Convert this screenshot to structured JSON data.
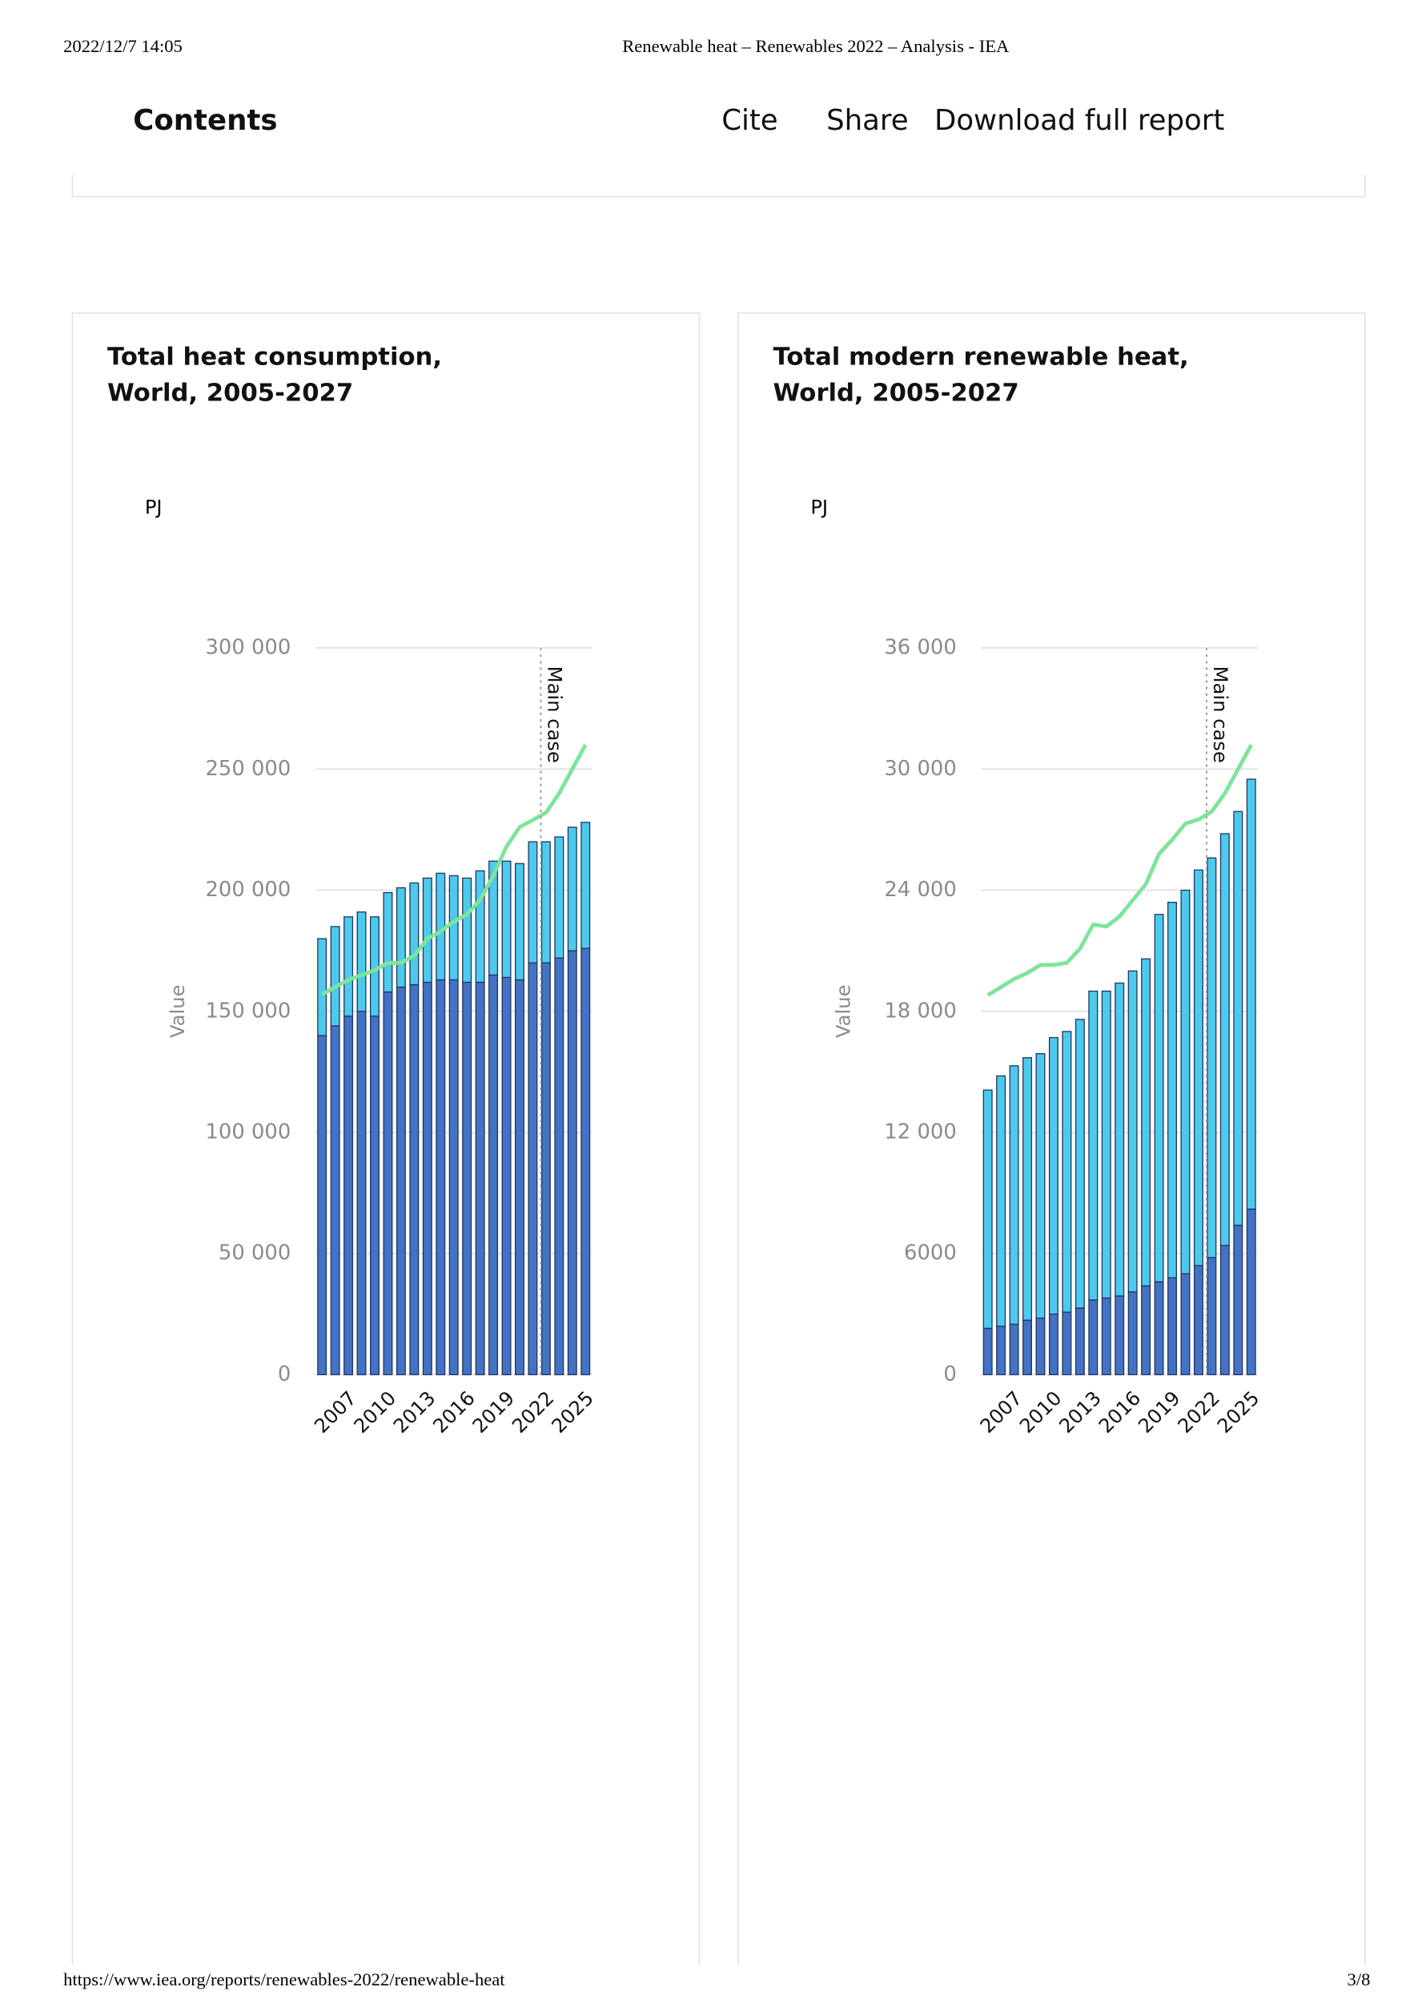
{
  "header": {
    "date": "2022/12/7 14:05",
    "page_title": "Renewable heat – Renewables 2022 – Analysis - IEA"
  },
  "nav": {
    "contents": "Contents",
    "cite": "Cite",
    "share": "Share",
    "download": "Download full report"
  },
  "footer": {
    "url": "https://www.iea.org/reports/renewables-2022/renewable-heat",
    "page": "3/8"
  },
  "chart_data": [
    {
      "type": "stacked_bar_line",
      "title": "Total heat consumption, World, 2005-2027",
      "unit": "PJ",
      "y_label": "Value",
      "categories": [
        null,
        null,
        "2007",
        null,
        null,
        "2010",
        null,
        null,
        "2013",
        null,
        null,
        "2016",
        null,
        null,
        "2019",
        null,
        null,
        "2022",
        null,
        null,
        "2025"
      ],
      "series": [
        {
          "color": "#4472c4",
          "values": [
            140000,
            144000,
            148000,
            150000,
            148000,
            158000,
            160000,
            161000,
            162000,
            163000,
            163000,
            162000,
            162000,
            165000,
            164000,
            163000,
            170000,
            170000,
            172000,
            175000,
            176000
          ]
        },
        {
          "color": "#4dc9ec",
          "values": [
            40000,
            41000,
            41000,
            41000,
            41000,
            41000,
            41000,
            42000,
            43000,
            44000,
            43000,
            43000,
            46000,
            47000,
            48000,
            48000,
            50000,
            50000,
            50000,
            51000,
            52000
          ]
        },
        {
          "type": "line",
          "color": "#7ee49b",
          "values": [
            157000,
            160000,
            163000,
            165000,
            167000,
            170000,
            170000,
            173000,
            180000,
            183000,
            187000,
            190000,
            196000,
            206000,
            218000,
            226000,
            229000,
            232000,
            240000,
            250000,
            260000
          ]
        }
      ],
      "annotation": {
        "label": "Main case",
        "at": "2022"
      },
      "ylim": [
        0,
        300000
      ],
      "yticks": [
        0,
        {
          "value": 50000,
          "label": "50 000"
        },
        {
          "value": 100000,
          "label": "100 000"
        },
        {
          "value": 150000,
          "label": "150 000"
        },
        {
          "value": 200000,
          "label": "200 000"
        },
        {
          "value": 250000,
          "label": "250 000"
        },
        {
          "value": 300000,
          "label": "300 000"
        }
      ],
      "grid": true
    },
    {
      "type": "stacked_bar_line",
      "title": "Total modern renewable heat, World, 2005-2027",
      "unit": "PJ",
      "y_label": "Value",
      "categories": [
        null,
        null,
        "2007",
        null,
        null,
        "2010",
        null,
        null,
        "2013",
        null,
        null,
        "2016",
        null,
        null,
        "2019",
        null,
        null,
        "2022",
        null,
        null,
        "2025"
      ],
      "series": [
        {
          "color": "#4472c4",
          "values": [
            2300,
            2400,
            2500,
            2700,
            2800,
            3000,
            3100,
            3300,
            3700,
            3800,
            3900,
            4100,
            4400,
            4600,
            4800,
            5000,
            5400,
            5800,
            6400,
            7400,
            8200
          ]
        },
        {
          "color": "#4dc9ec",
          "values": [
            11800,
            12400,
            12800,
            13000,
            13100,
            13700,
            13900,
            14300,
            15300,
            15200,
            15500,
            15900,
            16200,
            18200,
            18600,
            19000,
            19600,
            19800,
            20400,
            20500,
            21300
          ]
        },
        {
          "type": "line",
          "color": "#7ee49b",
          "values": [
            18800,
            19200,
            19600,
            19900,
            20300,
            20300,
            20400,
            21100,
            22300,
            22200,
            22700,
            23500,
            24300,
            25800,
            26500,
            27300,
            27500,
            27900,
            28800,
            30000,
            31200
          ]
        }
      ],
      "annotation": {
        "label": "Main case",
        "at": "2022"
      },
      "ylim": [
        0,
        36000
      ],
      "yticks": [
        0,
        6000,
        {
          "value": 12000,
          "label": "12 000"
        },
        {
          "value": 18000,
          "label": "18 000"
        },
        {
          "value": 24000,
          "label": "24 000"
        },
        {
          "value": 30000,
          "label": "30 000"
        },
        {
          "value": 36000,
          "label": "36 000"
        }
      ],
      "grid": true
    }
  ]
}
